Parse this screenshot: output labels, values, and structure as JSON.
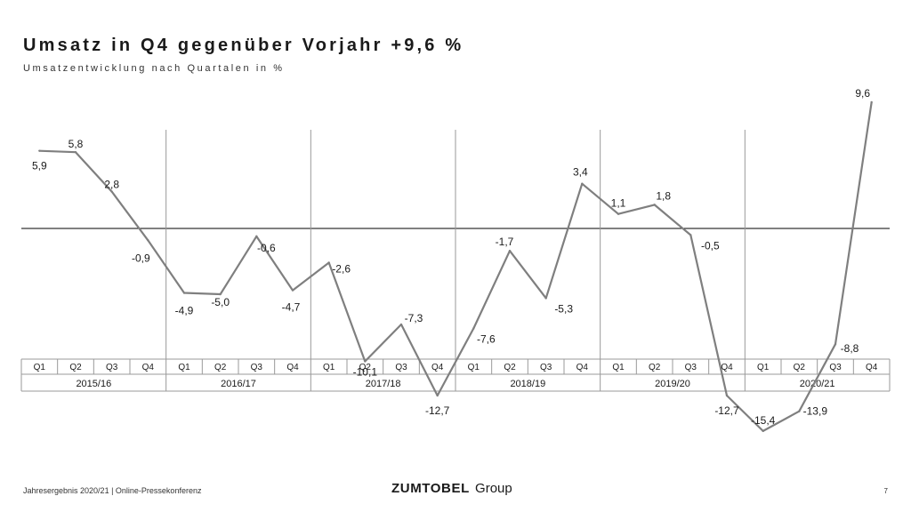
{
  "title": "Umsatz in Q4 gegenüber Vorjahr +9,6 %",
  "subtitle": "Umsatzentwicklung nach Quartalen in %",
  "footer": {
    "left": "Jahresergebnis 2020/21 | Online-Pressekonferenz",
    "logo_brand": "ZUMTOBEL",
    "logo_suffix": "Group",
    "page": "7"
  },
  "chart_data": {
    "type": "line",
    "title": "",
    "xlabel": "",
    "ylabel": "",
    "ylim": [
      -16,
      10
    ],
    "grid": false,
    "quarter_labels": [
      "Q1",
      "Q2",
      "Q3",
      "Q4"
    ],
    "groups": [
      "2015/16",
      "2016/17",
      "2017/18",
      "2018/19",
      "2019/20",
      "2020/21"
    ],
    "series": [
      {
        "color": "#7f7f7f",
        "values": [
          5.9,
          5.8,
          2.8,
          -0.9,
          -4.9,
          -5.0,
          -0.6,
          -4.7,
          -2.6,
          -10.1,
          -7.3,
          -12.7,
          -7.6,
          -1.7,
          -5.3,
          3.4,
          1.1,
          1.8,
          -0.5,
          -12.7,
          -15.4,
          -13.9,
          -8.8,
          9.6
        ],
        "data_labels": [
          "5,9",
          "5,8",
          "2,8",
          "-0,9",
          "-4,9",
          "-5,0",
          "-0,6",
          "-4,7",
          "-2,6",
          "-10,1",
          "-7,3",
          "-12,7",
          "-7,6",
          "-1,7",
          "-5,3",
          "3,4",
          "1,1",
          "1,8",
          "-0,5",
          "-12,7",
          "-15,4",
          "-13,9",
          "-8,8",
          "9,6"
        ]
      }
    ]
  }
}
